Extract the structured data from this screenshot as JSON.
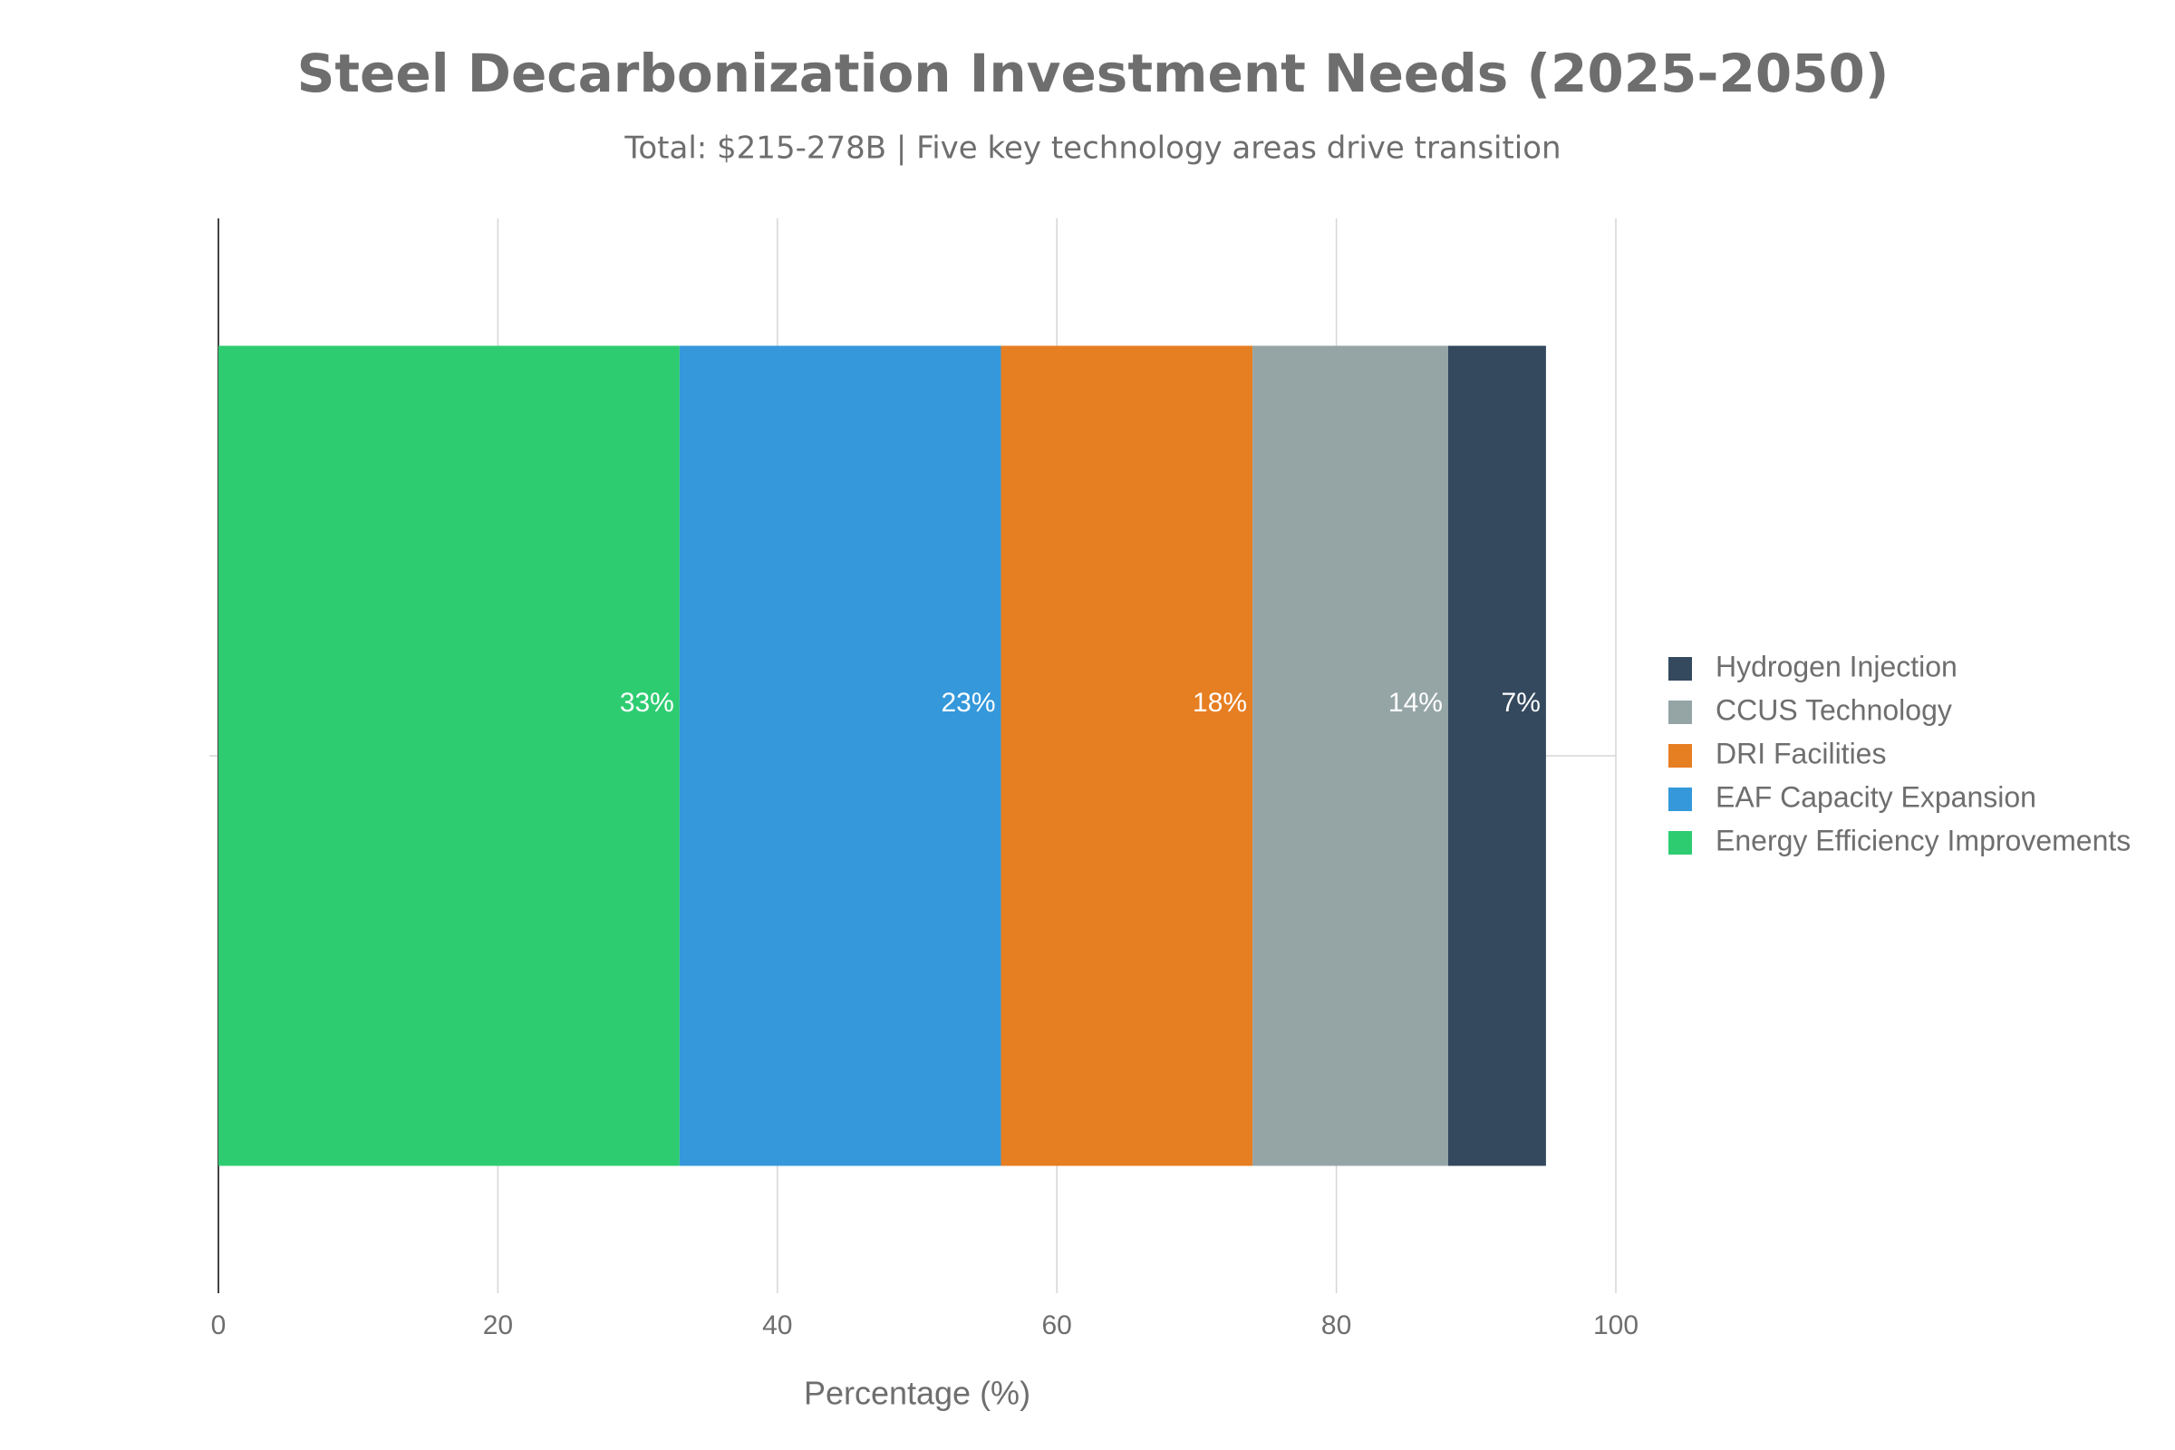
{
  "chart_data": {
    "type": "stacked-bar-horizontal",
    "title": "Steel Decarbonization Investment Needs (2025-2050)",
    "subtitle": "Total: $215-278B | Five key technology areas drive transition",
    "x_label": "Percentage (%)",
    "categories": [
      null
    ],
    "series": [
      {
        "name": "Energy Efficiency Improvements",
        "color": "#2ecc71",
        "values": [
          33
        ],
        "value_labels": [
          "33%"
        ]
      },
      {
        "name": "EAF Capacity Expansion",
        "color": "#3498db",
        "values": [
          23
        ],
        "value_labels": [
          "23%"
        ]
      },
      {
        "name": "DRI Facilities",
        "color": "#e67e22",
        "values": [
          18
        ],
        "value_labels": [
          "18%"
        ]
      },
      {
        "name": "CCUS Technology",
        "color": "#95a5a6",
        "values": [
          14
        ],
        "value_labels": [
          "14%"
        ]
      },
      {
        "name": "Hydrogen Injection",
        "color": "#34495e",
        "values": [
          7
        ],
        "value_labels": [
          "7%"
        ]
      }
    ],
    "xlim": [
      0,
      100
    ],
    "xticks": [
      0,
      20,
      40,
      60,
      80,
      100
    ],
    "grid": true,
    "legend": "right"
  }
}
